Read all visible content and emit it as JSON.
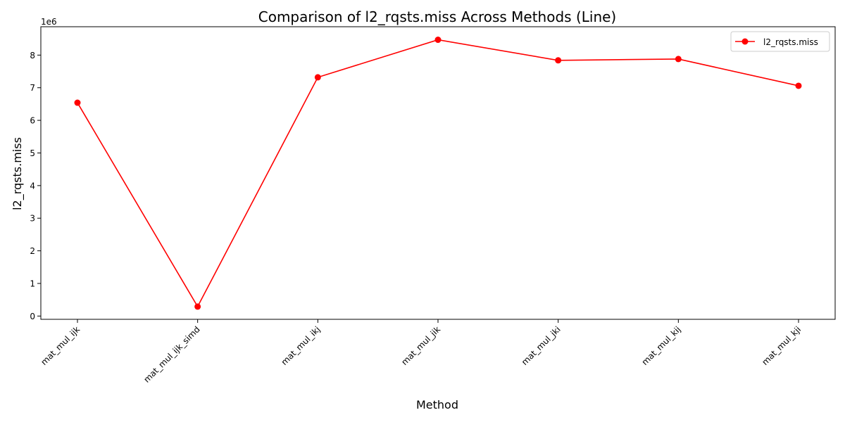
{
  "chart_data": {
    "type": "line",
    "title": "Comparison of l2_rqsts.miss Across Methods (Line)",
    "xlabel": "Method",
    "ylabel": "l2_rqsts.miss",
    "y_offset_label": "1e6",
    "y_scale": 1000000,
    "categories": [
      "mat_mul_ijk",
      "mat_mul_ijk_simd",
      "mat_mul_ikj",
      "mat_mul_jik",
      "mat_mul_jki",
      "mat_mul_kij",
      "mat_mul_kji"
    ],
    "series": [
      {
        "name": "l2_rqsts.miss",
        "color": "#ff0000",
        "marker": "circle",
        "values": [
          6540000,
          290000,
          7320000,
          8470000,
          7840000,
          7880000,
          7060000
        ]
      }
    ],
    "ylim": [
      -100000,
      8870000
    ],
    "yticks": [
      0,
      1,
      2,
      3,
      4,
      5,
      6,
      7,
      8
    ],
    "legend": {
      "position": "top-right"
    },
    "grid": false
  }
}
